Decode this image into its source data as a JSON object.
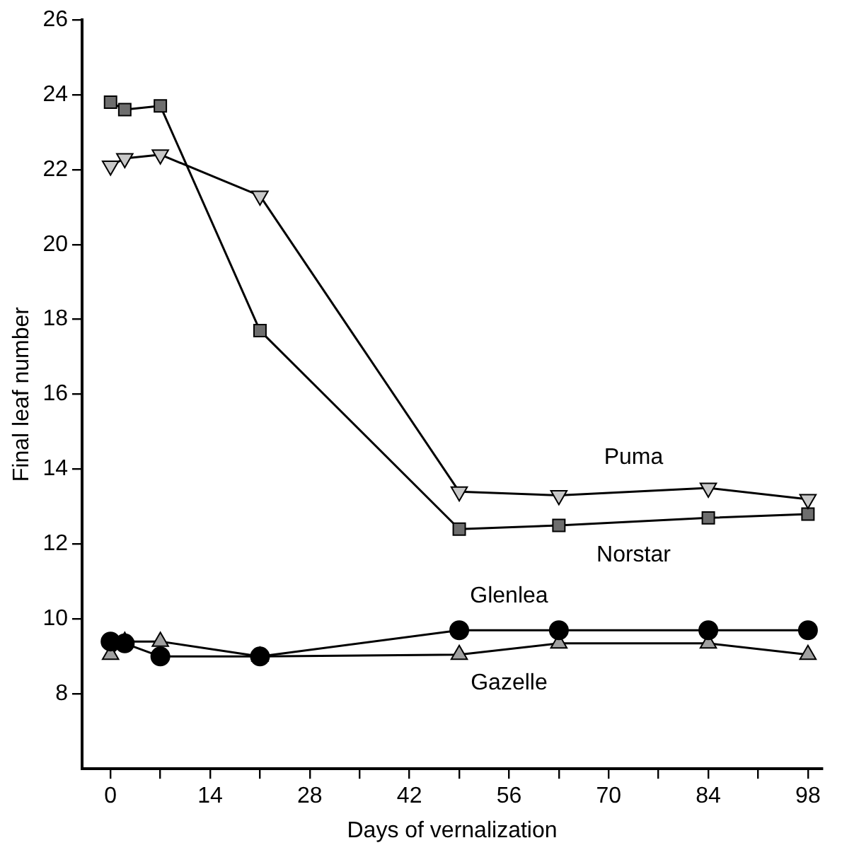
{
  "chart_data": {
    "type": "line",
    "xlabel": "Days of vernalization",
    "ylabel": "Final leaf number",
    "x": [
      0,
      2,
      7,
      21,
      49,
      63,
      84,
      98
    ],
    "series": [
      {
        "name": "Puma",
        "color": "#c8c8c8",
        "marker": "triangle-down",
        "values": [
          22.1,
          22.3,
          22.4,
          21.3,
          13.4,
          13.3,
          13.5,
          13.2
        ]
      },
      {
        "name": "Norstar",
        "color": "#6e6e6e",
        "marker": "square",
        "values": [
          23.8,
          23.6,
          23.7,
          17.7,
          12.4,
          12.5,
          12.7,
          12.8
        ]
      },
      {
        "name": "Glenlea",
        "color": "#000000",
        "marker": "circle",
        "values": [
          9.4,
          9.35,
          9.0,
          9.0,
          9.7,
          9.7,
          9.7,
          9.7
        ]
      },
      {
        "name": "Gazelle",
        "color": "#a0a0a0",
        "marker": "triangle",
        "values": [
          9.05,
          9.4,
          9.4,
          9.0,
          9.05,
          9.35,
          9.35,
          9.05
        ]
      }
    ],
    "xlim": [
      -4,
      100
    ],
    "ylim": [
      6,
      26
    ],
    "xticks": [
      0,
      {
        "value": 7,
        "label": null
      },
      14,
      {
        "value": 21,
        "label": null
      },
      28,
      {
        "value": 35,
        "label": null
      },
      42,
      {
        "value": 49,
        "label": null
      },
      56,
      {
        "value": 63,
        "label": null
      },
      70,
      {
        "value": 77,
        "label": null
      },
      84,
      {
        "value": 91,
        "label": null
      },
      98
    ],
    "yticks": [
      8,
      10,
      12,
      14,
      16,
      18,
      20,
      22,
      24,
      26
    ],
    "grid": false,
    "legend": false,
    "line_style": "solid"
  }
}
